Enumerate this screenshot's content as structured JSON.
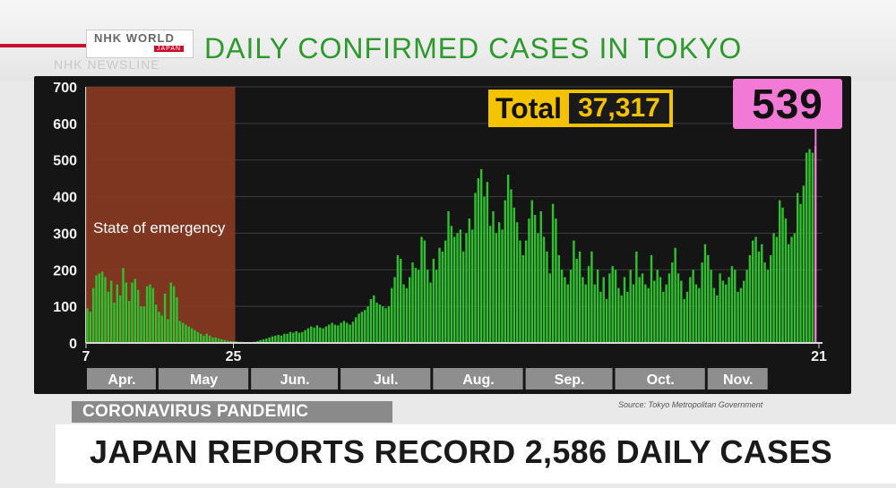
{
  "branding": {
    "logo": "NHK WORLD",
    "logo_sub": "JAPAN",
    "newsline": "NHK NEWSLINE"
  },
  "chart_data": {
    "type": "bar",
    "title": "DAILY CONFIRMED CASES IN TOKYO",
    "y_ticks": [
      "0",
      "100",
      "200",
      "300",
      "400",
      "500",
      "600",
      "700"
    ],
    "ylim": [
      0,
      700
    ],
    "x_start_label": "7",
    "x_mid_label": "25",
    "x_end_label": "21",
    "months": [
      "Apr.",
      "May",
      "Jun.",
      "Jul.",
      "Aug.",
      "Sep.",
      "Oct.",
      "Nov."
    ],
    "emergency_label": "State of emergency",
    "total_label": "Total",
    "total_value": "37,317",
    "latest_value": "539",
    "source": "Source: Tokyo Metropolitan Government",
    "colors": {
      "bar": "#2fbf2f",
      "emergency": "#8a3a22",
      "latest": "#f27ad6",
      "total": "#f3c300"
    },
    "values": [
      95,
      85,
      150,
      185,
      190,
      195,
      180,
      140,
      170,
      110,
      160,
      130,
      205,
      165,
      115,
      165,
      175,
      145,
      100,
      100,
      155,
      160,
      150,
      105,
      85,
      75,
      135,
      65,
      165,
      155,
      125,
      60,
      55,
      50,
      45,
      40,
      35,
      30,
      25,
      20,
      25,
      20,
      15,
      15,
      12,
      10,
      8,
      6,
      5,
      5,
      4,
      3,
      3,
      2,
      2,
      2,
      3,
      5,
      8,
      10,
      12,
      15,
      18,
      20,
      22,
      20,
      25,
      25,
      30,
      28,
      32,
      28,
      30,
      35,
      40,
      45,
      42,
      48,
      42,
      40,
      45,
      50,
      55,
      50,
      48,
      55,
      60,
      55,
      50,
      58,
      70,
      80,
      85,
      90,
      100,
      120,
      130,
      110,
      105,
      100,
      95,
      100,
      150,
      180,
      240,
      230,
      160,
      150,
      180,
      220,
      205,
      200,
      290,
      280,
      200,
      165,
      230,
      200,
      260,
      250,
      280,
      360,
      320,
      290,
      300,
      310,
      250,
      300,
      340,
      310,
      410,
      450,
      475,
      400,
      440,
      320,
      360,
      300,
      330,
      310,
      390,
      460,
      420,
      370,
      330,
      280,
      240,
      280,
      340,
      390,
      350,
      300,
      360,
      290,
      250,
      190,
      380,
      340,
      240,
      200,
      180,
      160,
      200,
      280,
      230,
      250,
      180,
      160,
      210,
      250,
      160,
      200,
      140,
      180,
      120,
      190,
      210,
      200,
      150,
      130,
      180,
      140,
      200,
      160,
      250,
      180,
      190,
      160,
      150,
      240,
      170,
      200,
      180,
      140,
      160,
      190,
      220,
      260,
      190,
      170,
      120,
      140,
      180,
      200,
      160,
      150,
      220,
      270,
      240,
      200,
      150,
      130,
      190,
      170,
      160,
      180,
      210,
      200,
      140,
      150,
      170,
      200,
      240,
      280,
      290,
      250,
      270,
      220,
      200,
      240,
      300,
      290,
      390,
      370,
      340,
      270,
      290,
      300,
      410,
      380,
      430,
      520,
      530,
      520,
      539
    ]
  },
  "lower_third": {
    "tag": "CORONAVIRUS PANDEMIC",
    "headline": "JAPAN REPORTS RECORD 2,586 DAILY CASES"
  }
}
